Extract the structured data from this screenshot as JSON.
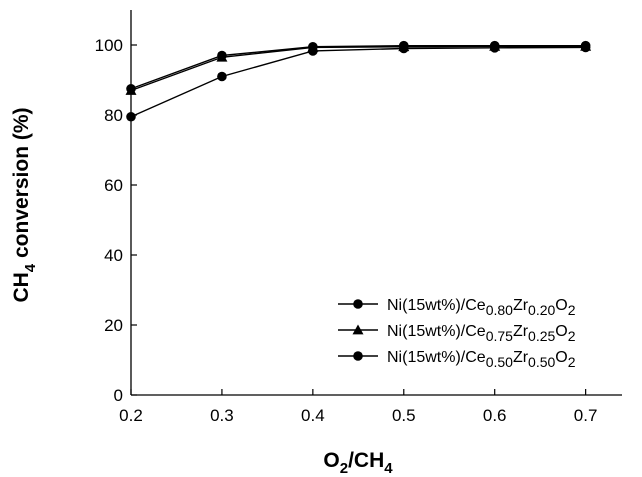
{
  "chart_data": {
    "type": "line",
    "xlabel": "O2/CH4",
    "xlabel_parts": {
      "main1": "O",
      "sub1": "2",
      "main2": "/CH",
      "sub2": "4"
    },
    "ylabel": "CH4 conversion (%)",
    "ylabel_parts": {
      "main1": "CH",
      "sub1": "4",
      "main2": " conversion (%)"
    },
    "xlim": [
      0.2,
      0.74
    ],
    "ylim": [
      0,
      110
    ],
    "xticks": [
      0.2,
      0.3,
      0.4,
      0.5,
      0.6,
      0.7
    ],
    "xtick_labels": [
      "0.2",
      "0.3",
      "0.4",
      "0.5",
      "0.6",
      "0.7"
    ],
    "yticks": [
      0,
      20,
      40,
      60,
      80,
      100
    ],
    "ytick_labels": [
      "0",
      "20",
      "40",
      "60",
      "80",
      "100"
    ],
    "grid": false,
    "legend_position": "bottom-right",
    "x": [
      0.2,
      0.3,
      0.4,
      0.5,
      0.6,
      0.7
    ],
    "series": [
      {
        "name": "Ni(15wt%)/Ce0.80Zr0.20O2",
        "name_parts": [
          "Ni(15wt%)/Ce",
          "0.80",
          "Zr",
          "0.20",
          "O",
          "2"
        ],
        "marker": "circle",
        "values": [
          87.5,
          97.0,
          99.5,
          99.8,
          99.8,
          99.8
        ]
      },
      {
        "name": "Ni(15wt%)/Ce0.75Zr0.25O2",
        "name_parts": [
          "Ni(15wt%)/Ce",
          "0.75",
          "Zr",
          "0.25",
          "O",
          "2"
        ],
        "marker": "triangle",
        "values": [
          87.0,
          96.5,
          99.3,
          99.5,
          99.6,
          99.6
        ]
      },
      {
        "name": "Ni(15wt%)/Ce0.50Zr0.50O2",
        "name_parts": [
          "Ni(15wt%)/Ce",
          "0.50",
          "Zr",
          "0.50",
          "O",
          "2"
        ],
        "marker": "circle",
        "values": [
          79.5,
          91.0,
          98.3,
          99.0,
          99.2,
          99.3
        ]
      }
    ],
    "colors": {
      "line": "#000000",
      "marker": "#000000"
    }
  }
}
